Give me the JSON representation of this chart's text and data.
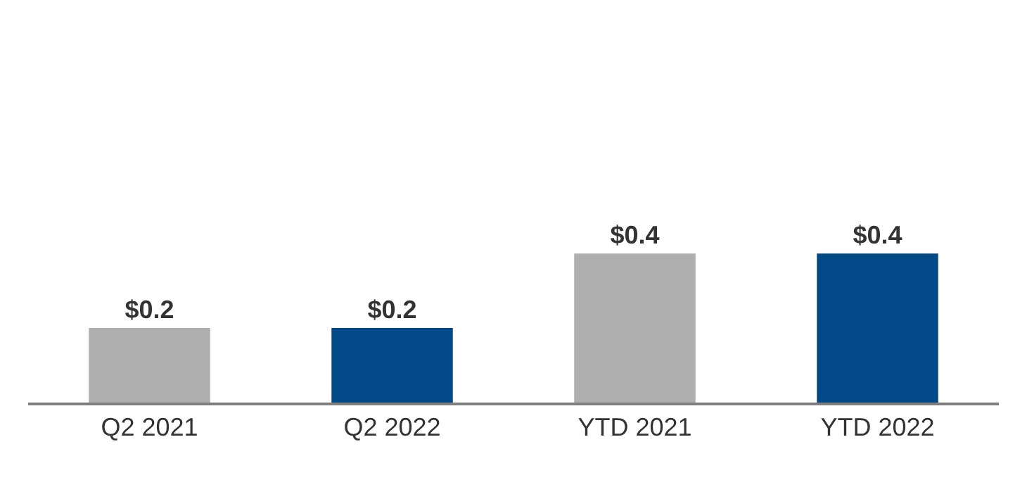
{
  "chart_data": {
    "type": "bar",
    "categories": [
      "Q2 2021",
      "Q2 2022",
      "YTD 2021",
      "YTD 2022"
    ],
    "values": [
      0.2,
      0.2,
      0.4,
      0.4
    ],
    "colors": [
      "#afafaf",
      "#014a87",
      "#afafaf",
      "#014a87"
    ],
    "value_labels": [
      "$0.2",
      "$0.2",
      "$0.4",
      "$0.4"
    ]
  }
}
